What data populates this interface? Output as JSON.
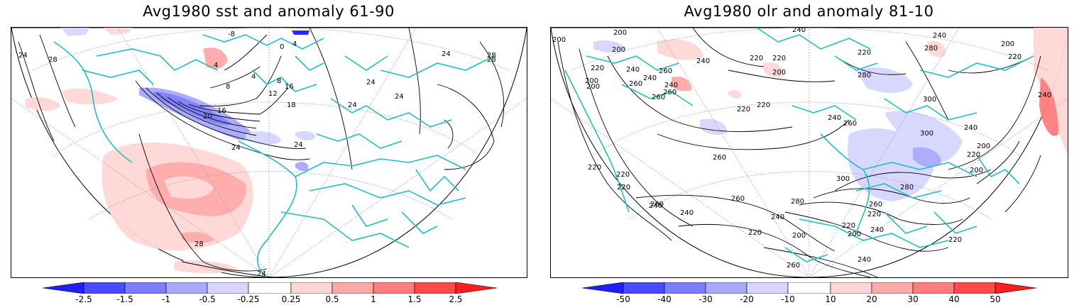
{
  "panels": [
    {
      "title": "Avg1980 sst and anomaly 61-90",
      "contour_labels": [
        "24",
        "28",
        "28",
        "28",
        "24",
        "24",
        "20",
        "16",
        "12",
        "8",
        "8",
        "4",
        "4",
        "0",
        "4",
        "-8",
        "16",
        "18",
        "24",
        "24",
        "24",
        "24",
        "28",
        "24"
      ],
      "colorbar": {
        "labels": [
          "-2.5",
          "-1.5",
          "-1",
          "-0.5",
          "-0.25",
          "0.25",
          "0.5",
          "1",
          "1.5",
          "2.5"
        ],
        "colors": [
          "#1e1eff",
          "#4a4aff",
          "#7d7dff",
          "#a9a9ff",
          "#d6d6ff",
          "#ffffff",
          "#ffd6d6",
          "#ffa9a9",
          "#ff7d7d",
          "#ff4a4a",
          "#ff1e1e"
        ]
      }
    },
    {
      "title": "Avg1980 olr and anomaly 81-10",
      "contour_labels": [
        "200",
        "200",
        "200",
        "220",
        "200",
        "240",
        "260",
        "240",
        "240",
        "260",
        "240",
        "220",
        "220",
        "200",
        "220",
        "220",
        "220",
        "240",
        "260",
        "280",
        "240",
        "280",
        "200",
        "220",
        "240",
        "260",
        "300",
        "300",
        "260",
        "260",
        "240",
        "220",
        "200",
        "220",
        "220",
        "240",
        "260",
        "280",
        "260",
        "300",
        "240",
        "220",
        "200",
        "240",
        "280",
        "260",
        "240",
        "220",
        "200",
        "220",
        "200",
        "220",
        "240",
        "260",
        "240",
        "220",
        "200"
      ],
      "colorbar": {
        "labels": [
          "-50",
          "-40",
          "-30",
          "-20",
          "-10",
          "10",
          "20",
          "30",
          "40",
          "50"
        ],
        "colors": [
          "#1e1eff",
          "#4a4aff",
          "#7d7dff",
          "#a9a9ff",
          "#d6d6ff",
          "#ffffff",
          "#ffd6d6",
          "#ffa9a9",
          "#ff7d7d",
          "#ff4a4a",
          "#ff1e1e"
        ]
      }
    }
  ],
  "colors": {
    "coastline": "#20c0c0",
    "contour": "#000000",
    "grid": "#999999"
  }
}
